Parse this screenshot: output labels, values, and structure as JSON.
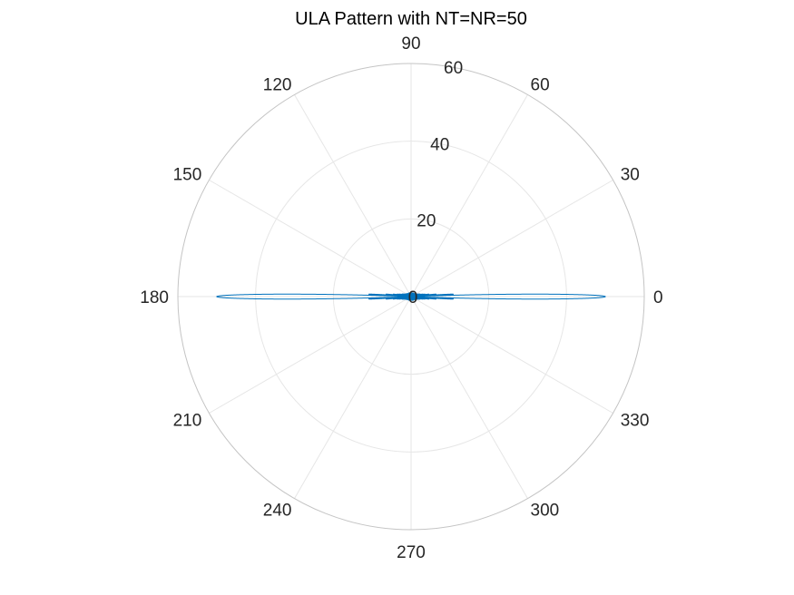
{
  "chart_data": {
    "type": "line",
    "projection": "polar",
    "title": "ULA Pattern with NT=NR=50",
    "angle_unit": "degrees",
    "theta_ticks": [
      0,
      30,
      60,
      90,
      120,
      150,
      180,
      210,
      240,
      270,
      300,
      330
    ],
    "theta_tick_labels": [
      "0",
      "30",
      "60",
      "90",
      "120",
      "150",
      "180",
      "210",
      "240",
      "270",
      "300",
      "330"
    ],
    "rlim": [
      0,
      60
    ],
    "r_ticks": [
      0,
      20,
      40,
      60
    ],
    "r_tick_labels": [
      "0",
      "20",
      "40",
      "60"
    ],
    "grid": true,
    "series": [
      {
        "color": "#0072bd",
        "array_size": 50,
        "peak_gain": 50,
        "peak_directions_deg": [
          0,
          180
        ],
        "first_sidelobe_gain": 11,
        "sidelobe_directions_deg": [
          0,
          180
        ],
        "sidelobe_extent_r": 11,
        "sidelobe_halfwidth_r": 1.0
      }
    ]
  }
}
